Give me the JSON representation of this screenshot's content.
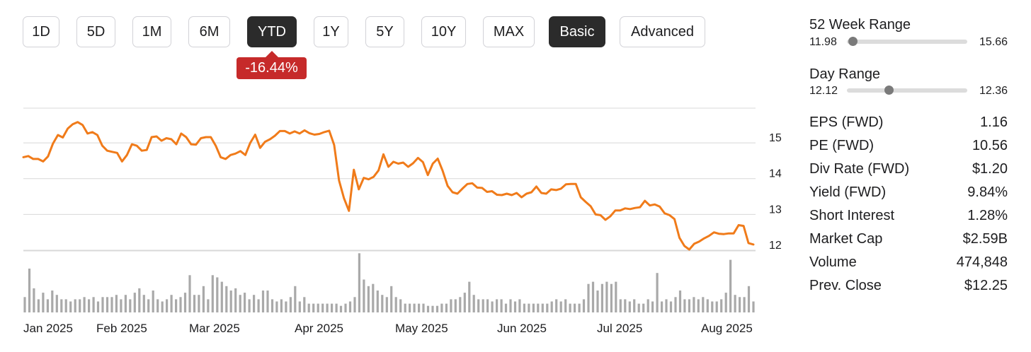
{
  "range_buttons": [
    {
      "label": "1D",
      "active": false
    },
    {
      "label": "5D",
      "active": false
    },
    {
      "label": "1M",
      "active": false
    },
    {
      "label": "6M",
      "active": false
    },
    {
      "label": "YTD",
      "active": true
    },
    {
      "label": "1Y",
      "active": false
    },
    {
      "label": "5Y",
      "active": false
    },
    {
      "label": "10Y",
      "active": false
    },
    {
      "label": "MAX",
      "active": false
    },
    {
      "label": "Basic",
      "active": true
    },
    {
      "label": "Advanced",
      "active": false
    }
  ],
  "change_badge": "-16.44%",
  "colors": {
    "line": "#f07b1a",
    "volume": "#a9a9a9",
    "grid": "#d8d8d8",
    "negative": "#c62a2a"
  },
  "chart_data": {
    "type": "line",
    "series": [
      {
        "values": [
          14.6,
          14.63,
          14.55,
          14.55,
          14.48,
          14.62,
          14.98,
          15.22,
          15.15,
          15.4,
          15.52,
          15.58,
          15.5,
          15.26,
          15.3,
          15.22,
          14.92,
          14.78,
          14.75,
          14.72,
          14.48,
          14.66,
          14.96,
          14.92,
          14.78,
          14.8,
          15.16,
          15.18,
          15.06,
          15.13,
          15.1,
          14.96,
          15.26,
          15.16,
          14.96,
          14.95,
          15.13,
          15.16,
          15.16,
          14.92,
          14.6,
          14.55,
          14.66,
          14.7,
          14.77,
          14.66,
          15.0,
          15.23,
          14.86,
          15.03,
          15.1,
          15.2,
          15.33,
          15.33,
          15.26,
          15.32,
          15.26,
          15.35,
          15.27,
          15.23,
          15.25,
          15.3,
          15.34,
          14.94,
          13.95,
          13.45,
          13.1,
          14.25,
          13.7,
          14.02,
          13.98,
          14.05,
          14.23,
          14.68,
          14.33,
          14.47,
          14.42,
          14.45,
          14.33,
          14.43,
          14.58,
          14.46,
          14.1,
          14.42,
          14.56,
          14.22,
          13.8,
          13.62,
          13.58,
          13.72,
          13.85,
          13.87,
          13.75,
          13.74,
          13.63,
          13.65,
          13.55,
          13.54,
          13.58,
          13.54,
          13.6,
          13.48,
          13.58,
          13.62,
          13.78,
          13.6,
          13.58,
          13.7,
          13.68,
          13.72,
          13.84,
          13.85,
          13.85,
          13.48,
          13.35,
          13.23,
          13.0,
          12.98,
          12.85,
          12.95,
          13.11,
          13.11,
          13.17,
          13.15,
          13.18,
          13.2,
          13.38,
          13.25,
          13.28,
          13.22,
          13.03,
          12.98,
          12.87,
          12.35,
          12.12,
          12.02,
          12.18,
          12.24,
          12.33,
          12.4,
          12.5,
          12.46,
          12.45,
          12.47,
          12.47,
          12.7,
          12.68,
          12.2,
          12.16
        ]
      }
    ],
    "volume": [
      0.35,
      1.0,
      0.55,
      0.3,
      0.45,
      0.3,
      0.5,
      0.4,
      0.3,
      0.3,
      0.25,
      0.3,
      0.3,
      0.35,
      0.3,
      0.35,
      0.25,
      0.35,
      0.35,
      0.35,
      0.4,
      0.3,
      0.4,
      0.3,
      0.45,
      0.55,
      0.4,
      0.3,
      0.5,
      0.3,
      0.25,
      0.3,
      0.4,
      0.3,
      0.35,
      0.45,
      0.85,
      0.4,
      0.4,
      0.6,
      0.3,
      0.85,
      0.8,
      0.7,
      0.6,
      0.5,
      0.55,
      0.4,
      0.45,
      0.3,
      0.4,
      0.3,
      0.5,
      0.5,
      0.3,
      0.25,
      0.3,
      0.25,
      0.35,
      0.6,
      0.25,
      0.35,
      0.2,
      0.2,
      0.2,
      0.2,
      0.2,
      0.2,
      0.2,
      0.15,
      0.2,
      0.25,
      0.35,
      1.35,
      0.75,
      0.6,
      0.65,
      0.5,
      0.4,
      0.35,
      0.6,
      0.35,
      0.3,
      0.2,
      0.2,
      0.2,
      0.2,
      0.2,
      0.15,
      0.15,
      0.15,
      0.2,
      0.2,
      0.3,
      0.3,
      0.35,
      0.45,
      0.7,
      0.4,
      0.3,
      0.3,
      0.3,
      0.25,
      0.3,
      0.3,
      0.2,
      0.3,
      0.25,
      0.3,
      0.2,
      0.2,
      0.2,
      0.2,
      0.2,
      0.2,
      0.25,
      0.3,
      0.25,
      0.3,
      0.2,
      0.2,
      0.2,
      0.3,
      0.65,
      0.7,
      0.5,
      0.65,
      0.7,
      0.65,
      0.7,
      0.3,
      0.3,
      0.25,
      0.3,
      0.2,
      0.2,
      0.3,
      0.25,
      0.9,
      0.25,
      0.3,
      0.25,
      0.35,
      0.5,
      0.3,
      0.3,
      0.35,
      0.3,
      0.35,
      0.3,
      0.25,
      0.25,
      0.3,
      0.45,
      1.2,
      0.4,
      0.35,
      0.35,
      0.6,
      0.25
    ],
    "x_ticks": [
      "Jan 2025",
      "Feb 2025",
      "Mar 2025",
      "Apr 2025",
      "May 2025",
      "Jun 2025",
      "Jul 2025",
      "Aug 2025"
    ],
    "y_ticks": [
      15,
      14,
      13,
      12
    ],
    "ylim": [
      11.98,
      15.97
    ],
    "grid": true,
    "title": "",
    "xlabel": "",
    "ylabel": ""
  },
  "ranges": [
    {
      "title": "52 Week Range",
      "low": "11.98",
      "high": "15.66",
      "position": 0.05
    },
    {
      "title": "Day Range",
      "low": "12.12",
      "high": "12.36",
      "position": 0.35
    }
  ],
  "stats": [
    {
      "label": "EPS (FWD)",
      "value": "1.16"
    },
    {
      "label": "PE (FWD)",
      "value": "10.56"
    },
    {
      "label": "Div Rate (FWD)",
      "value": "$1.20"
    },
    {
      "label": "Yield (FWD)",
      "value": "9.84%"
    },
    {
      "label": "Short Interest",
      "value": "1.28%"
    },
    {
      "label": "Market Cap",
      "value": "$2.59B"
    },
    {
      "label": "Volume",
      "value": "474,848"
    },
    {
      "label": "Prev. Close",
      "value": "$12.25"
    }
  ]
}
